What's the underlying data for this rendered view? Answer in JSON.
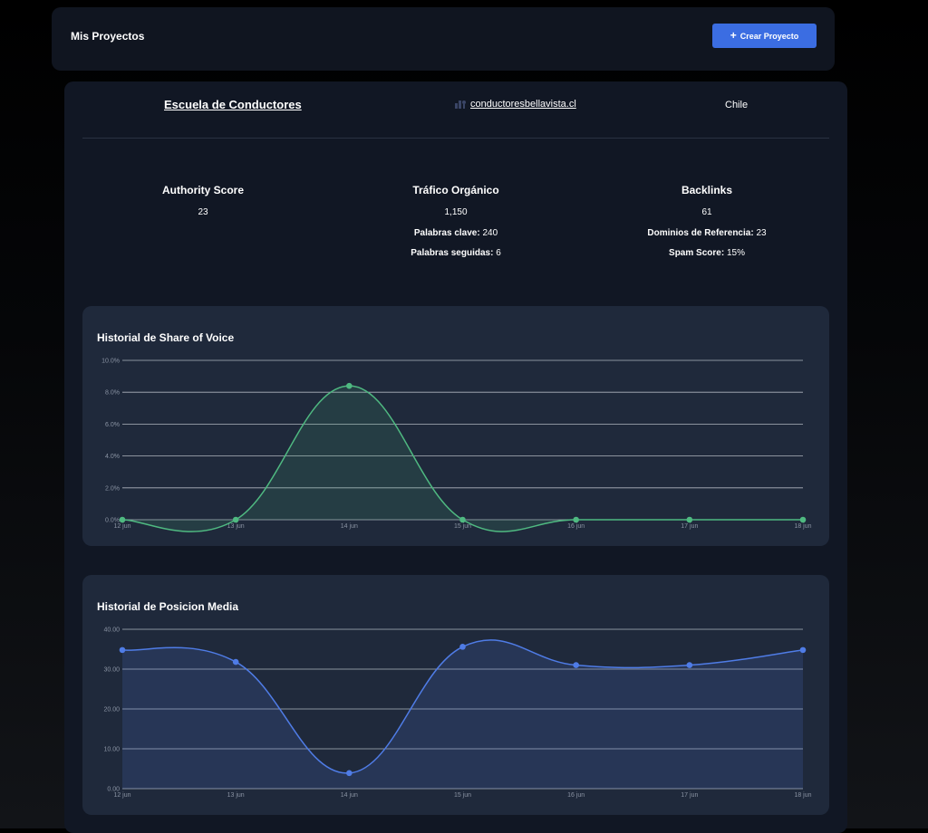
{
  "header": {
    "title": "Mis Proyectos",
    "create_label": "Crear Proyecto",
    "create_icon": "plus-icon"
  },
  "project": {
    "name": "Escuela de Conductores",
    "domain": "conductoresbellavista.cl",
    "country": "Chile"
  },
  "metrics": {
    "authority": {
      "label": "Authority Score",
      "value": "23"
    },
    "traffic": {
      "label": "Tráfico Orgánico",
      "value": "1,150",
      "keywords_label": "Palabras clave:",
      "keywords_value": "240",
      "tracked_label": "Palabras seguidas:",
      "tracked_value": "6"
    },
    "backlinks": {
      "label": "Backlinks",
      "value": "61",
      "ref_label": "Dominios de Referencia:",
      "ref_value": "23",
      "spam_label": "Spam Score:",
      "spam_value": "15%"
    }
  },
  "chart_data": [
    {
      "type": "area",
      "title": "Historial de Share of Voice",
      "categories": [
        "12 jun",
        "13 jun",
        "14 jun",
        "15 jun",
        "16 jun",
        "17 jun",
        "18 jun"
      ],
      "series": [
        {
          "values": [
            0,
            0,
            8.4,
            0,
            0,
            0,
            0
          ],
          "color": "#4fb981"
        }
      ],
      "ylim": [
        0,
        10
      ],
      "yticks": [
        "0.0%",
        "2.0%",
        "4.0%",
        "6.0%",
        "8.0%",
        "10.0%"
      ],
      "grid": true
    },
    {
      "type": "area",
      "title": "Historial de Posicion Media",
      "categories": [
        "12 jun",
        "13 jun",
        "14 jun",
        "15 jun",
        "16 jun",
        "17 jun",
        "18 jun"
      ],
      "series": [
        {
          "values": [
            34.8,
            31.8,
            3.9,
            35.6,
            31.0,
            31.0,
            34.8
          ],
          "color": "#4f7ce6"
        }
      ],
      "ylim": [
        0,
        40
      ],
      "yticks": [
        "0.00",
        "10.00",
        "20.00",
        "30.00",
        "40.00"
      ],
      "grid": true
    }
  ]
}
